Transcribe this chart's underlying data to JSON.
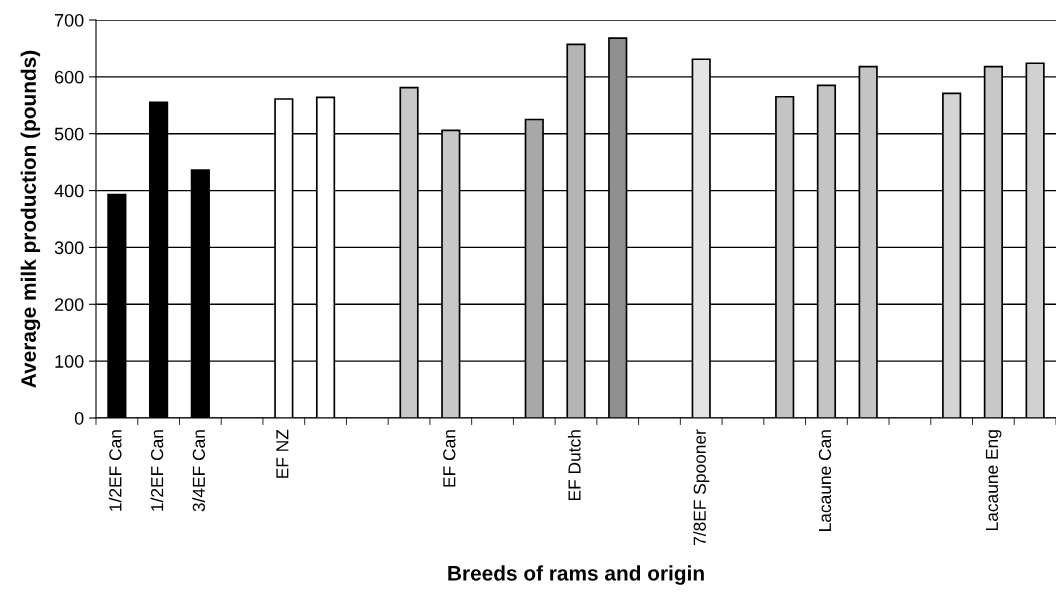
{
  "chart_data": {
    "type": "bar",
    "xlabel": "Breeds of rams and origin",
    "ylabel": "Average milk production (pounds)",
    "categories": [
      "1/2EF Can",
      "1/2EF Can",
      "3/4EF Can",
      null,
      "EF NZ",
      null,
      null,
      null,
      "EF Can",
      null,
      null,
      "EF Dutch",
      null,
      null,
      "7/8EF Spooner",
      null,
      null,
      "Lacaune Can",
      null,
      null,
      null,
      "Lacaune Eng",
      null
    ],
    "values": [
      393,
      555,
      436,
      null,
      561,
      564,
      null,
      581,
      506,
      null,
      525,
      657,
      668,
      null,
      631,
      null,
      565,
      585,
      618,
      null,
      571,
      618,
      624
    ],
    "colors": [
      "#000000",
      "#000000",
      "#000000",
      "#ffffff",
      "#ffffff",
      "#ffffff",
      "#ffffff",
      "#c8c8c8",
      "#c8c8c8",
      "#ffffff",
      "#a8a8a8",
      "#b4b4b4",
      "#909090",
      "#ffffff",
      "#e4e4e4",
      "#ffffff",
      "#c4c4c4",
      "#c4c4c4",
      "#c4c4c4",
      "#ffffff",
      "#d4d4d4",
      "#c8c8c8",
      "#d0d0d0"
    ],
    "ylim": [
      0,
      700
    ],
    "yticks": [
      0,
      100,
      200,
      300,
      400,
      500,
      600,
      700
    ],
    "grid": "y",
    "legend": false
  }
}
